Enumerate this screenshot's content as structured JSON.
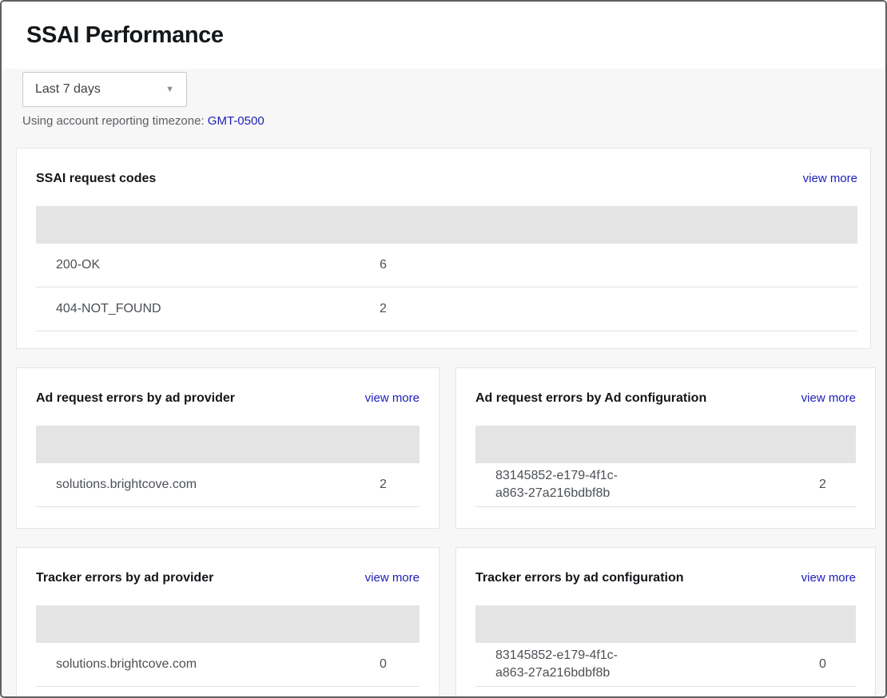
{
  "page": {
    "title": "SSAI Performance"
  },
  "filters": {
    "date_range": "Last 7 days",
    "caret_icon": "▼"
  },
  "timezone": {
    "label": "Using account reporting timezone:",
    "value": "GMT-0500"
  },
  "colors": {
    "link_blue": "#1d1db8",
    "table_header_gray": "#e4e4e4",
    "page_background": "#f7f7f7"
  },
  "cards": [
    {
      "title": "SSAI request codes",
      "view_more": "view more",
      "rows": [
        {
          "label_lines": [
            "200-OK"
          ],
          "value": "6"
        },
        {
          "label_lines": [
            "404-NOT_FOUND"
          ],
          "value": "2"
        }
      ]
    },
    {
      "title": "Ad request errors by ad provider",
      "view_more": "view more",
      "rows": [
        {
          "label_lines": [
            "solutions.brightcove.com"
          ],
          "value": "2"
        }
      ]
    },
    {
      "title": "Ad request errors by Ad configuration",
      "view_more": "view more",
      "rows": [
        {
          "label_lines": [
            "83145852-e179-4f1c-",
            "a863-27a216bdbf8b"
          ],
          "value": "2"
        }
      ]
    },
    {
      "title": "Tracker errors by ad provider",
      "view_more": "view more",
      "rows": [
        {
          "label_lines": [
            "solutions.brightcove.com"
          ],
          "value": "0"
        }
      ]
    },
    {
      "title": "Tracker errors by ad configuration",
      "view_more": "view more",
      "rows": [
        {
          "label_lines": [
            "83145852-e179-4f1c-",
            "a863-27a216bdbf8b"
          ],
          "value": "0"
        }
      ]
    }
  ]
}
